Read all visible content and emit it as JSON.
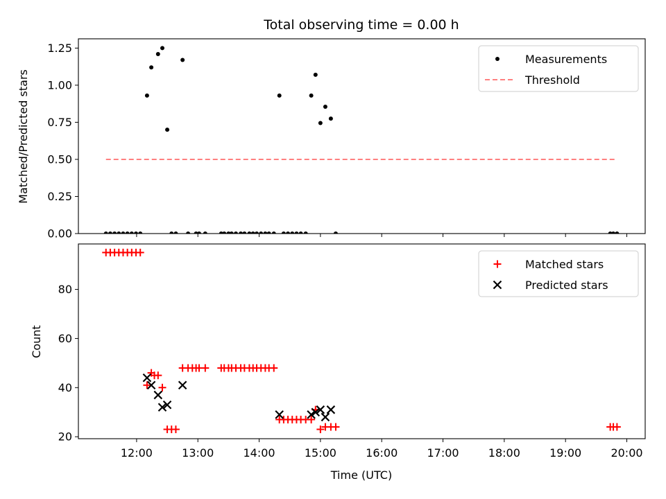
{
  "chart_data": [
    {
      "type": "scatter",
      "title": "Total observing time = 0.00 h",
      "xlabel": "",
      "ylabel": "Matched/Predicted stars",
      "ylim": [
        0,
        1.3125
      ],
      "xlim": [
        11.05,
        20.3
      ],
      "yticks": [
        0.0,
        0.25,
        0.5,
        0.75,
        1.0,
        1.25
      ],
      "ytick_labels": [
        "0.00",
        "0.25",
        "0.50",
        "0.75",
        "1.00",
        "1.25"
      ],
      "xticks": [
        12,
        13,
        14,
        15,
        16,
        17,
        18,
        19,
        20
      ],
      "legend_position": "top-right",
      "series": [
        {
          "name": "Measurements",
          "kind": "scatter",
          "color": "#000000",
          "x": [
            11.5,
            11.57,
            11.64,
            11.71,
            11.78,
            11.85,
            11.92,
            11.99,
            12.06,
            12.17,
            12.24,
            12.35,
            12.42,
            12.5,
            12.57,
            12.64,
            12.75,
            12.84,
            12.97,
            13.02,
            13.12,
            13.38,
            13.43,
            13.5,
            13.55,
            13.62,
            13.7,
            13.76,
            13.84,
            13.9,
            13.96,
            14.03,
            14.1,
            14.16,
            14.24,
            14.33,
            14.4,
            14.47,
            14.54,
            14.61,
            14.68,
            14.76,
            14.85,
            14.92,
            15.0,
            15.08,
            15.17,
            15.25,
            19.73,
            19.78,
            19.84
          ],
          "y": [
            0,
            0,
            0,
            0,
            0,
            0,
            0,
            0,
            0,
            0.93,
            1.12,
            1.21,
            1.25,
            0.7,
            0,
            0,
            1.17,
            0,
            0,
            0,
            0,
            0,
            0,
            0,
            0,
            0,
            0,
            0,
            0,
            0,
            0,
            0,
            0,
            0,
            0,
            0.93,
            0,
            0,
            0,
            0,
            0,
            0,
            0.93,
            1.07,
            0.745,
            0.855,
            0.775,
            0,
            0,
            0,
            0
          ]
        },
        {
          "name": "Threshold",
          "kind": "dashed-line",
          "color": "#ff7f7f",
          "x": [
            11.5,
            19.84
          ],
          "y": [
            0.5,
            0.5
          ]
        }
      ]
    },
    {
      "type": "scatter",
      "title": "",
      "xlabel": "Time (UTC)",
      "ylabel": "Count",
      "ylim": [
        19.2,
        98.5
      ],
      "xlim": [
        11.05,
        20.3
      ],
      "yticks": [
        20,
        40,
        60,
        80
      ],
      "ytick_labels": [
        "20",
        "40",
        "60",
        "80"
      ],
      "xticks": [
        12,
        13,
        14,
        15,
        16,
        17,
        18,
        19,
        20
      ],
      "xtick_labels": [
        "12:00",
        "13:00",
        "14:00",
        "15:00",
        "16:00",
        "17:00",
        "18:00",
        "19:00",
        "20:00"
      ],
      "legend_position": "top-right",
      "series": [
        {
          "name": "Matched stars",
          "kind": "plus",
          "color": "#ff0000",
          "x": [
            11.5,
            11.57,
            11.64,
            11.71,
            11.78,
            11.85,
            11.92,
            11.99,
            12.06,
            12.17,
            12.24,
            12.29,
            12.35,
            12.42,
            12.5,
            12.57,
            12.64,
            12.75,
            12.84,
            12.91,
            12.97,
            13.02,
            13.12,
            13.38,
            13.43,
            13.5,
            13.55,
            13.62,
            13.7,
            13.76,
            13.84,
            13.9,
            13.96,
            14.03,
            14.1,
            14.16,
            14.24,
            14.33,
            14.4,
            14.47,
            14.54,
            14.61,
            14.68,
            14.76,
            14.85,
            14.92,
            15.0,
            15.08,
            15.17,
            15.25,
            19.73,
            19.78,
            19.84
          ],
          "y": [
            95,
            95,
            95,
            95,
            95,
            95,
            95,
            95,
            95,
            41,
            46,
            45,
            45,
            40,
            23,
            23,
            23,
            48,
            48,
            48,
            48,
            48,
            48,
            48,
            48,
            48,
            48,
            48,
            48,
            48,
            48,
            48,
            48,
            48,
            48,
            48,
            48,
            27,
            27,
            27,
            27,
            27,
            27,
            27,
            27,
            31,
            23,
            24,
            24,
            24,
            24,
            24,
            24
          ]
        },
        {
          "name": "Predicted stars",
          "kind": "x",
          "color": "#000000",
          "x": [
            12.17,
            12.24,
            12.35,
            12.42,
            12.5,
            12.75,
            14.33,
            14.85,
            14.92,
            15.0,
            15.08,
            15.17
          ],
          "y": [
            44,
            41,
            37,
            32,
            33,
            41,
            29,
            29,
            30,
            31,
            28,
            31
          ]
        }
      ]
    }
  ]
}
